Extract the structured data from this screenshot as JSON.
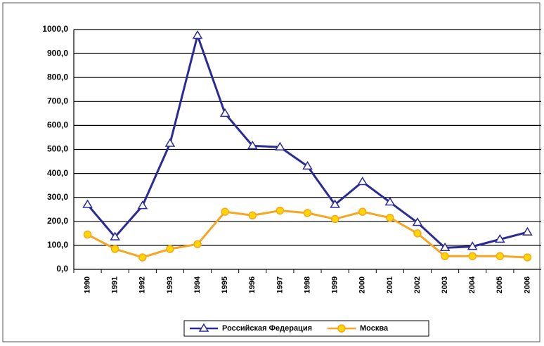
{
  "chart_data": {
    "type": "line",
    "categories": [
      "1990",
      "1991",
      "1992",
      "1993",
      "1994",
      "1995",
      "1996",
      "1997",
      "1998",
      "1999",
      "2000",
      "2001",
      "2002",
      "2003",
      "2004",
      "2005",
      "2006"
    ],
    "series": [
      {
        "name": "Российская Федерация",
        "color": "#2b2b96",
        "values": [
          270,
          135,
          265,
          525,
          975,
          650,
          515,
          510,
          430,
          270,
          365,
          280,
          195,
          90,
          95,
          125,
          155
        ]
      },
      {
        "name": "Москва",
        "color": "#f5a623",
        "values": [
          145,
          85,
          50,
          85,
          105,
          240,
          225,
          245,
          235,
          210,
          240,
          215,
          150,
          55,
          55,
          55,
          50
        ]
      }
    ],
    "ylim": [
      0,
      1000
    ],
    "yticks": [
      {
        "value": 0,
        "label": "0,0"
      },
      {
        "value": 100,
        "label": "100,0"
      },
      {
        "value": 200,
        "label": "200,0"
      },
      {
        "value": 300,
        "label": "300,0"
      },
      {
        "value": 400,
        "label": "400,0"
      },
      {
        "value": 500,
        "label": "500,0"
      },
      {
        "value": 600,
        "label": "600,0"
      },
      {
        "value": 700,
        "label": "700,0"
      },
      {
        "value": 800,
        "label": "800,0"
      },
      {
        "value": 900,
        "label": "900,0"
      },
      {
        "value": 1000,
        "label": "1000,0"
      }
    ],
    "grid": true
  }
}
